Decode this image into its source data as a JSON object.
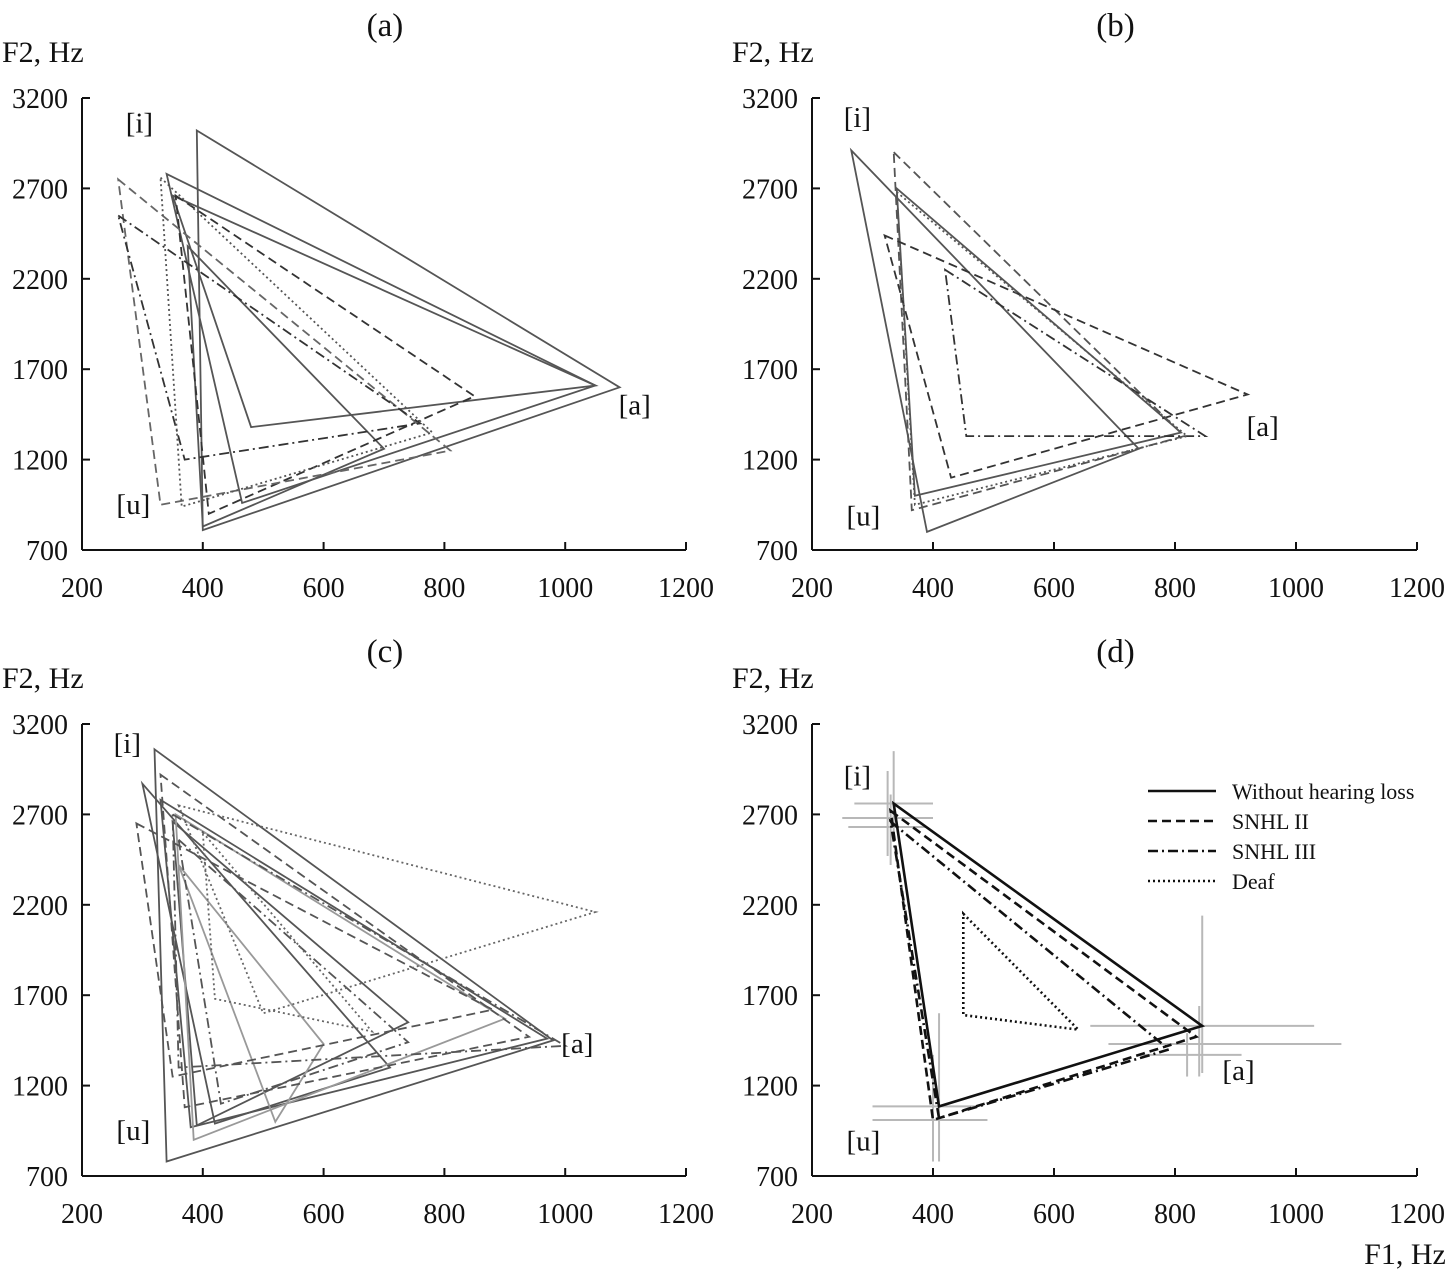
{
  "figure": {
    "y_axis_title": "F2, Hz",
    "x_axis_title": "F1, Hz"
  },
  "chart_data": [
    {
      "panel": "a",
      "title": "(a)",
      "type": "line",
      "xlabel": "",
      "ylabel": "F2, Hz",
      "xlim": [
        200,
        1200
      ],
      "ylim": [
        700,
        3200
      ],
      "xticks": [
        200,
        400,
        600,
        800,
        1000,
        1200
      ],
      "yticks": [
        700,
        1200,
        1700,
        2200,
        2700,
        3200
      ],
      "vowel_labels": [
        {
          "text": "[i]",
          "x": 295,
          "y": 3010
        },
        {
          "text": "[u]",
          "x": 285,
          "y": 900
        },
        {
          "text": "[a]",
          "x": 1115,
          "y": 1450
        }
      ],
      "series": [
        {
          "style": "solid",
          "color": "#555555",
          "points": [
            [
              390,
              3020
            ],
            [
              1090,
              1600
            ],
            [
              400,
              810
            ]
          ]
        },
        {
          "style": "solid",
          "color": "#555555",
          "points": [
            [
              340,
              2780
            ],
            [
              1050,
              1610
            ],
            [
              465,
              960
            ]
          ]
        },
        {
          "style": "solid",
          "color": "#555555",
          "points": [
            [
              350,
              2660
            ],
            [
              480,
              1380
            ],
            [
              1050,
              1610
            ]
          ]
        },
        {
          "style": "solid",
          "color": "#555555",
          "points": [
            [
              375,
              2380
            ],
            [
              700,
              1260
            ],
            [
              400,
              830
            ]
          ]
        },
        {
          "style": "dashed",
          "color": "#333333",
          "points": [
            [
              355,
              2660
            ],
            [
              850,
              1550
            ],
            [
              410,
              900
            ]
          ]
        },
        {
          "style": "dashed",
          "color": "#666666",
          "points": [
            [
              260,
              2750
            ],
            [
              810,
              1250
            ],
            [
              330,
              950
            ]
          ]
        },
        {
          "style": "dashdot",
          "color": "#333333",
          "points": [
            [
              260,
              2550
            ],
            [
              760,
              1400
            ],
            [
              370,
              1200
            ]
          ]
        },
        {
          "style": "dotted",
          "color": "#555555",
          "points": [
            [
              330,
              2760
            ],
            [
              780,
              1350
            ],
            [
              365,
              940
            ]
          ]
        }
      ]
    },
    {
      "panel": "b",
      "title": "(b)",
      "type": "line",
      "xlabel": "",
      "ylabel": "F2, Hz",
      "xlim": [
        200,
        1200
      ],
      "ylim": [
        700,
        3200
      ],
      "xticks": [
        200,
        400,
        600,
        800,
        1000,
        1200
      ],
      "yticks": [
        700,
        1200,
        1700,
        2200,
        2700,
        3200
      ],
      "vowel_labels": [
        {
          "text": "[i]",
          "x": 275,
          "y": 3040
        },
        {
          "text": "[u]",
          "x": 285,
          "y": 835
        },
        {
          "text": "[a]",
          "x": 945,
          "y": 1330
        }
      ],
      "series": [
        {
          "style": "solid",
          "color": "#555555",
          "points": [
            [
              265,
              2910
            ],
            [
              740,
              1260
            ],
            [
              390,
              800
            ]
          ]
        },
        {
          "style": "solid",
          "color": "#555555",
          "points": [
            [
              340,
              2700
            ],
            [
              810,
              1350
            ],
            [
              370,
              1000
            ]
          ]
        },
        {
          "style": "dashed",
          "color": "#555555",
          "points": [
            [
              335,
              2900
            ],
            [
              815,
              1330
            ],
            [
              365,
              920
            ]
          ]
        },
        {
          "style": "dashed",
          "color": "#333333",
          "points": [
            [
              320,
              2440
            ],
            [
              920,
              1560
            ],
            [
              430,
              1100
            ]
          ]
        },
        {
          "style": "dashdot",
          "color": "#333333",
          "points": [
            [
              420,
              2250
            ],
            [
              850,
              1330
            ],
            [
              455,
              1330
            ]
          ]
        },
        {
          "style": "dotted",
          "color": "#555555",
          "points": [
            [
              340,
              2680
            ],
            [
              820,
              1330
            ],
            [
              370,
              950
            ]
          ]
        }
      ]
    },
    {
      "panel": "c",
      "title": "(c)",
      "type": "line",
      "xlabel": "",
      "ylabel": "F2, Hz",
      "xlim": [
        200,
        1200
      ],
      "ylim": [
        700,
        3200
      ],
      "xticks": [
        200,
        400,
        600,
        800,
        1000,
        1200
      ],
      "yticks": [
        700,
        1200,
        1700,
        2200,
        2700,
        3200
      ],
      "vowel_labels": [
        {
          "text": "[i]",
          "x": 275,
          "y": 3040
        },
        {
          "text": "[u]",
          "x": 285,
          "y": 900
        },
        {
          "text": "[a]",
          "x": 1020,
          "y": 1380
        }
      ],
      "series": [
        {
          "style": "solid",
          "color": "#555555",
          "points": [
            [
              320,
              3060
            ],
            [
              980,
              1450
            ],
            [
              340,
              780
            ]
          ]
        },
        {
          "style": "solid",
          "color": "#555555",
          "points": [
            [
              300,
              2870
            ],
            [
              710,
              1300
            ],
            [
              420,
              990
            ]
          ]
        },
        {
          "style": "solid",
          "color": "#555555",
          "points": [
            [
              330,
              2780
            ],
            [
              970,
              1460
            ],
            [
              380,
              970
            ]
          ]
        },
        {
          "style": "solid",
          "color": "#555555",
          "points": [
            [
              350,
              2660
            ],
            [
              740,
              1550
            ],
            [
              390,
              980
            ]
          ]
        },
        {
          "style": "solid",
          "color": "#999999",
          "points": [
            [
              355,
              2700
            ],
            [
              900,
              1570
            ],
            [
              385,
              900
            ]
          ]
        },
        {
          "style": "solid",
          "color": "#999999",
          "points": [
            [
              360,
              2420
            ],
            [
              600,
              1430
            ],
            [
              520,
              1000
            ]
          ]
        },
        {
          "style": "dashed",
          "color": "#555555",
          "points": [
            [
              330,
              2920
            ],
            [
              940,
              1470
            ],
            [
              370,
              1080
            ]
          ]
        },
        {
          "style": "dashed",
          "color": "#555555",
          "points": [
            [
              290,
              2650
            ],
            [
              880,
              1620
            ],
            [
              350,
              1250
            ]
          ]
        },
        {
          "style": "dashdot",
          "color": "#555555",
          "points": [
            [
              350,
              2700
            ],
            [
              1000,
              1420
            ],
            [
              360,
              1300
            ]
          ]
        },
        {
          "style": "dashdot",
          "color": "#555555",
          "points": [
            [
              360,
              2560
            ],
            [
              740,
              1440
            ],
            [
              430,
              1100
            ]
          ]
        },
        {
          "style": "dotted",
          "color": "#666666",
          "points": [
            [
              360,
              2750
            ],
            [
              1050,
              2160
            ],
            [
              500,
              1600
            ]
          ]
        },
        {
          "style": "dotted",
          "color": "#666666",
          "points": [
            [
              400,
              2600
            ],
            [
              680,
              1500
            ],
            [
              420,
              1680
            ]
          ]
        }
      ]
    },
    {
      "panel": "d",
      "title": "(d)",
      "type": "line",
      "xlabel": "F1, Hz",
      "ylabel": "F2, Hz",
      "xlim": [
        200,
        1200
      ],
      "ylim": [
        700,
        3200
      ],
      "xticks": [
        200,
        400,
        600,
        800,
        1000,
        1200
      ],
      "yticks": [
        700,
        1200,
        1700,
        2200,
        2700,
        3200
      ],
      "vowel_labels": [
        {
          "text": "[i]",
          "x": 275,
          "y": 2860
        },
        {
          "text": "[u]",
          "x": 285,
          "y": 840
        },
        {
          "text": "[a]",
          "x": 905,
          "y": 1230
        }
      ],
      "legend": {
        "position": "upper-right",
        "entries": [
          {
            "label": "Without hearing loss",
            "style": "solid"
          },
          {
            "label": "SNHL II",
            "style": "dashed"
          },
          {
            "label": "SNHL III",
            "style": "dashdot"
          },
          {
            "label": "Deaf",
            "style": "dotted"
          }
        ]
      },
      "series": [
        {
          "name": "Without hearing loss",
          "style": "solid",
          "color": "#111111",
          "points": [
            [
              335,
              2760
            ],
            [
              845,
              1530
            ],
            [
              410,
              1085
            ]
          ]
        },
        {
          "name": "SNHL II",
          "style": "dashed",
          "color": "#111111",
          "points": [
            [
              330,
              2720
            ],
            [
              835,
              1470
            ],
            [
              400,
              1010
            ]
          ]
        },
        {
          "name": "SNHL III",
          "style": "dashdot",
          "color": "#111111",
          "points": [
            [
              330,
              2660
            ],
            [
              790,
              1400
            ],
            [
              410,
              1020
            ]
          ]
        },
        {
          "name": "Deaf",
          "style": "dotted",
          "color": "#111111",
          "points": [
            [
              450,
              2150
            ],
            [
              640,
              1510
            ],
            [
              450,
              1590
            ]
          ]
        }
      ],
      "error_bars": [
        {
          "x": 335,
          "y": 2760,
          "xerr": [
            270,
            400
          ],
          "yerr": [
            2560,
            3050
          ]
        },
        {
          "x": 325,
          "y": 2680,
          "xerr": [
            250,
            400
          ],
          "yerr": [
            2470,
            2940
          ]
        },
        {
          "x": 330,
          "y": 2630,
          "xerr": [
            260,
            390
          ],
          "yerr": [
            2420,
            2810
          ]
        },
        {
          "x": 845,
          "y": 1530,
          "xerr": [
            660,
            1030
          ],
          "yerr": [
            1270,
            2140
          ]
        },
        {
          "x": 840,
          "y": 1430,
          "xerr": [
            690,
            1075
          ],
          "yerr": [
            1250,
            1640
          ]
        },
        {
          "x": 820,
          "y": 1370,
          "xerr": [
            740,
            910
          ],
          "yerr": [
            1250,
            1490
          ]
        },
        {
          "x": 410,
          "y": 1085,
          "xerr": [
            300,
            470
          ],
          "yerr": [
            780,
            1600
          ]
        },
        {
          "x": 400,
          "y": 1010,
          "xerr": [
            300,
            490
          ],
          "yerr": [
            780,
            1370
          ]
        }
      ]
    }
  ]
}
